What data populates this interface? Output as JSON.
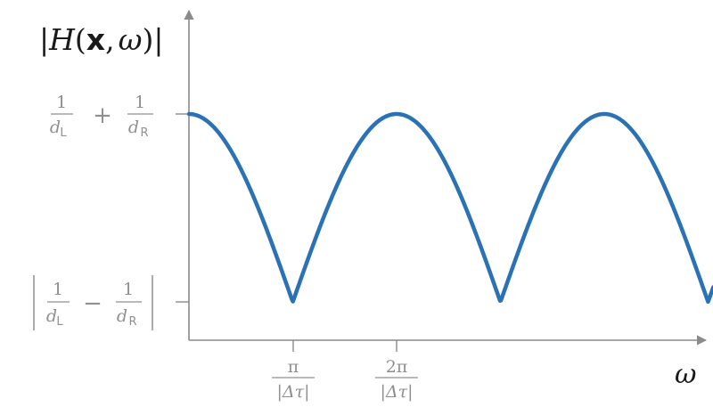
{
  "chart_data": {
    "type": "line",
    "ylabel": {
      "open": "|",
      "func": "H",
      "lparen": "(",
      "var_x": "x",
      "comma": ",",
      "var_w": "ω",
      "rparen": ")",
      "close": "|"
    },
    "xlabel": "ω",
    "yticks": [
      {
        "value": 1.0,
        "prefix": "",
        "suffix": "",
        "left_num": "1",
        "left_den": "d",
        "left_sub": "L",
        "op": "+",
        "right_num": "1",
        "right_den": "d",
        "right_sub": "R"
      },
      {
        "value": 0.0,
        "prefix": "|",
        "suffix": "|",
        "left_num": "1",
        "left_den": "d",
        "left_sub": "L",
        "op": "−",
        "right_num": "1",
        "right_den": "d",
        "right_sub": "R"
      }
    ],
    "xticks": [
      {
        "value": 1,
        "num": "π",
        "den": "|Δτ|"
      },
      {
        "value": 2,
        "num": "2π",
        "den": "|Δτ|"
      }
    ],
    "xlim": [
      0,
      5.05
    ],
    "ylim": [
      0,
      1
    ],
    "series": [
      {
        "color": "#2a72b5",
        "function": "abs_cos_half",
        "x": [
          0,
          0.5,
          1,
          1.5,
          2,
          2.5,
          3,
          3.5,
          4,
          4.5,
          5
        ],
        "values": [
          1.0,
          0.58,
          0.0,
          0.58,
          1.0,
          0.58,
          0.0,
          0.58,
          1.0,
          0.58,
          0.0
        ]
      }
    ]
  }
}
